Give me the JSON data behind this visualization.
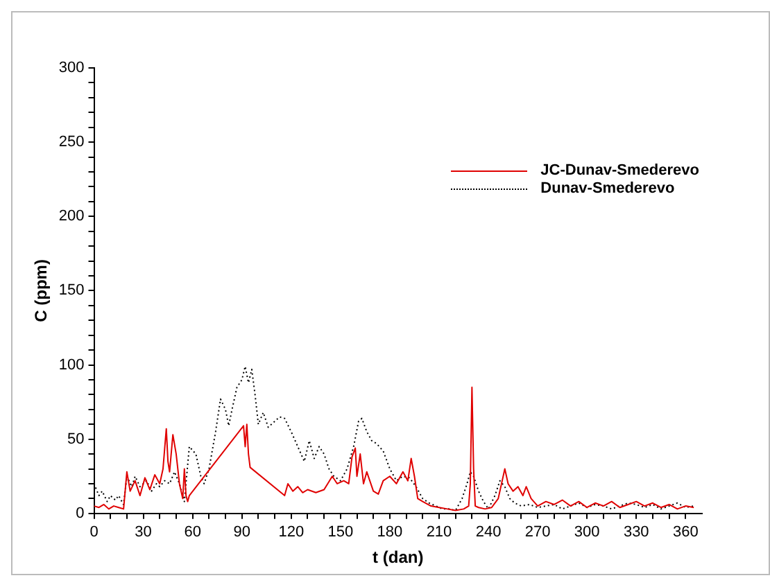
{
  "chart_data": {
    "type": "line",
    "xlabel": "t (dan)",
    "ylabel": "C (ppm)",
    "xlim": [
      0,
      370
    ],
    "ylim": [
      0,
      300
    ],
    "xticks": [
      0,
      {
        "value": 10,
        "label": null
      },
      {
        "value": 20,
        "label": null
      },
      30,
      {
        "value": 40,
        "label": null
      },
      {
        "value": 50,
        "label": null
      },
      60,
      {
        "value": 70,
        "label": null
      },
      {
        "value": 80,
        "label": null
      },
      90,
      {
        "value": 100,
        "label": null
      },
      {
        "value": 110,
        "label": null
      },
      120,
      {
        "value": 130,
        "label": null
      },
      {
        "value": 140,
        "label": null
      },
      150,
      {
        "value": 160,
        "label": null
      },
      {
        "value": 170,
        "label": null
      },
      180,
      {
        "value": 190,
        "label": null
      },
      {
        "value": 200,
        "label": null
      },
      210,
      {
        "value": 220,
        "label": null
      },
      {
        "value": 230,
        "label": null
      },
      240,
      {
        "value": 250,
        "label": null
      },
      {
        "value": 260,
        "label": null
      },
      270,
      {
        "value": 280,
        "label": null
      },
      {
        "value": 290,
        "label": null
      },
      300,
      {
        "value": 310,
        "label": null
      },
      {
        "value": 320,
        "label": null
      },
      330,
      {
        "value": 340,
        "label": null
      },
      {
        "value": 350,
        "label": null
      },
      360
    ],
    "yticks": [
      0,
      {
        "value": 10,
        "label": null
      },
      {
        "value": 20,
        "label": null
      },
      {
        "value": 30,
        "label": null
      },
      {
        "value": 40,
        "label": null
      },
      50,
      {
        "value": 60,
        "label": null
      },
      {
        "value": 70,
        "label": null
      },
      {
        "value": 80,
        "label": null
      },
      {
        "value": 90,
        "label": null
      },
      100,
      {
        "value": 110,
        "label": null
      },
      {
        "value": 120,
        "label": null
      },
      {
        "value": 130,
        "label": null
      },
      {
        "value": 140,
        "label": null
      },
      150,
      {
        "value": 160,
        "label": null
      },
      {
        "value": 170,
        "label": null
      },
      {
        "value": 180,
        "label": null
      },
      {
        "value": 190,
        "label": null
      },
      200,
      {
        "value": 210,
        "label": null
      },
      {
        "value": 220,
        "label": null
      },
      {
        "value": 230,
        "label": null
      },
      {
        "value": 240,
        "label": null
      },
      250,
      {
        "value": 260,
        "label": null
      },
      {
        "value": 270,
        "label": null
      },
      {
        "value": 280,
        "label": null
      },
      {
        "value": 290,
        "label": null
      },
      300
    ],
    "grid": false,
    "legend": "top right",
    "marker": "none",
    "series": [
      {
        "name": "JC-Dunav-Smederevo",
        "color": "#e00000",
        "line_style": "solid",
        "x": [
          0,
          3,
          6,
          9,
          12,
          15,
          18,
          20,
          22,
          25,
          28,
          31,
          34,
          37,
          40,
          42,
          44,
          45,
          46,
          48,
          50,
          52,
          54,
          55,
          56,
          57,
          58,
          91,
          92,
          93,
          94,
          95,
          116,
          118,
          121,
          124,
          127,
          130,
          135,
          140,
          145,
          148,
          152,
          155,
          157,
          159,
          160,
          162,
          164,
          166,
          170,
          173,
          176,
          180,
          184,
          188,
          191,
          193,
          195,
          197,
          200,
          205,
          210,
          215,
          220,
          225,
          228,
          229,
          230,
          231,
          232,
          234,
          238,
          242,
          246,
          250,
          252,
          255,
          258,
          261,
          263,
          266,
          270,
          275,
          280,
          285,
          290,
          295,
          300,
          305,
          310,
          315,
          320,
          325,
          330,
          335,
          340,
          345,
          350,
          355,
          360,
          365
        ],
        "values": [
          5,
          4,
          6,
          3,
          5,
          4,
          3,
          28,
          15,
          22,
          12,
          24,
          16,
          26,
          20,
          30,
          57,
          35,
          28,
          53,
          40,
          20,
          10,
          30,
          12,
          8,
          12,
          59,
          45,
          60,
          40,
          31,
          12,
          20,
          15,
          18,
          14,
          16,
          14,
          16,
          25,
          20,
          22,
          20,
          38,
          44,
          25,
          40,
          20,
          28,
          15,
          13,
          22,
          25,
          20,
          28,
          22,
          37,
          25,
          10,
          8,
          5,
          4,
          3,
          2,
          3,
          5,
          20,
          85,
          30,
          5,
          4,
          3,
          4,
          10,
          30,
          20,
          15,
          18,
          12,
          18,
          10,
          5,
          8,
          6,
          9,
          5,
          8,
          4,
          7,
          5,
          8,
          4,
          6,
          8,
          5,
          7,
          4,
          6,
          3,
          5,
          4
        ]
      },
      {
        "name": "Dunav-Smederevo",
        "color": "#000000",
        "line_style": "dotted",
        "x": [
          0,
          3,
          5,
          8,
          10,
          13,
          15,
          18,
          20,
          23,
          25,
          28,
          32,
          35,
          38,
          40,
          43,
          46,
          49,
          52,
          55,
          58,
          62,
          65,
          67,
          70,
          74,
          77,
          80,
          82,
          84,
          87,
          90,
          92,
          94,
          96,
          98,
          100,
          103,
          106,
          110,
          113,
          116,
          120,
          124,
          128,
          131,
          134,
          137,
          140,
          143,
          146,
          150,
          154,
          158,
          161,
          163,
          166,
          169,
          172,
          176,
          180,
          184,
          188,
          192,
          196,
          200,
          204,
          208,
          212,
          216,
          220,
          224,
          227,
          229,
          231,
          234,
          237,
          240,
          244,
          247,
          250,
          253,
          256,
          260,
          265,
          270,
          275,
          280,
          285,
          290,
          295,
          300,
          305,
          310,
          315,
          320,
          325,
          330,
          335,
          340,
          345,
          350,
          355,
          360,
          365
        ],
        "values": [
          20,
          12,
          15,
          8,
          12,
          9,
          12,
          6,
          25,
          18,
          25,
          18,
          22,
          15,
          20,
          18,
          22,
          20,
          28,
          20,
          8,
          45,
          40,
          25,
          20,
          30,
          55,
          77,
          70,
          59,
          70,
          85,
          90,
          99,
          88,
          97,
          80,
          60,
          68,
          58,
          62,
          65,
          64,
          55,
          45,
          35,
          49,
          37,
          45,
          40,
          30,
          25,
          22,
          30,
          45,
          62,
          64,
          55,
          49,
          47,
          42,
          30,
          22,
          25,
          24,
          18,
          10,
          7,
          5,
          3,
          3,
          2,
          10,
          20,
          28,
          25,
          15,
          8,
          3,
          12,
          22,
          18,
          10,
          7,
          5,
          6,
          4,
          5,
          6,
          3,
          5,
          7,
          4,
          6,
          5,
          3,
          5,
          7,
          6,
          4,
          6,
          3,
          5,
          7,
          4,
          5
        ]
      }
    ]
  }
}
